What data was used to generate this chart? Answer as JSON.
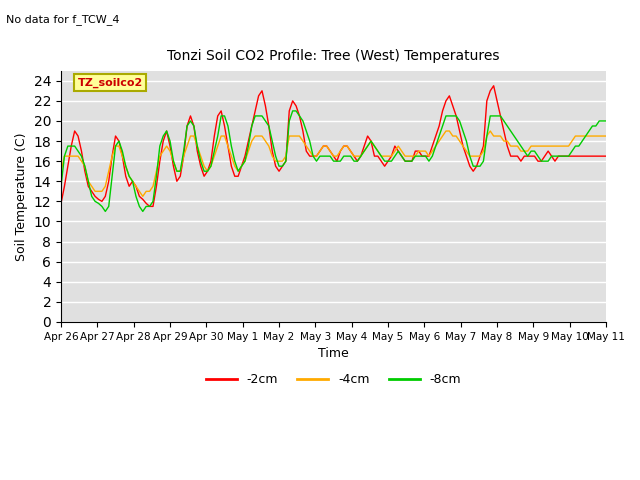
{
  "title": "Tonzi Soil CO2 Profile: Tree (West) Temperatures",
  "subtitle": "No data for f_TCW_4",
  "xlabel": "Time",
  "ylabel": "Soil Temperature (C)",
  "ylim": [
    0,
    25
  ],
  "yticks": [
    0,
    2,
    4,
    6,
    8,
    10,
    12,
    14,
    16,
    18,
    20,
    22,
    24
  ],
  "xtick_labels": [
    "Apr 26",
    "Apr 27",
    "Apr 28",
    "Apr 29",
    "Apr 30",
    "May 1",
    "May 2",
    "May 3",
    "May 4",
    "May 5",
    "May 6",
    "May 7",
    "May 8",
    "May 9",
    "May 10",
    "May 11"
  ],
  "legend_label": "TZ_soilco2",
  "series_labels": [
    "-2cm",
    "-4cm",
    "-8cm"
  ],
  "series_colors": [
    "#ff0000",
    "#ffaa00",
    "#00cc00"
  ],
  "background_color": "#e0e0e0",
  "legend_box_color": "#ffff99",
  "legend_box_edge": "#aaaa00",
  "y_2cm": [
    11.8,
    13.5,
    15.5,
    17.5,
    19.0,
    18.5,
    17.0,
    15.0,
    13.5,
    13.0,
    12.5,
    12.2,
    12.0,
    12.5,
    14.0,
    16.5,
    18.5,
    18.0,
    16.5,
    14.5,
    13.5,
    14.0,
    13.5,
    12.5,
    12.2,
    11.8,
    11.5,
    11.5,
    13.5,
    16.0,
    18.0,
    19.0,
    17.5,
    15.5,
    14.0,
    14.5,
    16.5,
    19.5,
    20.5,
    19.5,
    17.0,
    15.5,
    14.5,
    15.0,
    16.0,
    18.5,
    20.5,
    21.0,
    19.5,
    17.5,
    15.5,
    14.5,
    14.5,
    15.5,
    16.5,
    18.0,
    19.5,
    21.0,
    22.5,
    23.0,
    21.5,
    19.5,
    17.0,
    15.5,
    15.0,
    15.5,
    16.0,
    21.0,
    22.0,
    21.5,
    20.5,
    19.0,
    17.0,
    16.5,
    16.5,
    16.5,
    17.0,
    17.5,
    17.5,
    17.0,
    16.5,
    16.0,
    17.0,
    17.5,
    17.5,
    17.0,
    16.5,
    16.0,
    16.5,
    17.5,
    18.5,
    18.0,
    16.5,
    16.5,
    16.0,
    15.5,
    16.0,
    16.5,
    17.5,
    17.0,
    16.5,
    16.0,
    16.0,
    16.0,
    17.0,
    17.0,
    16.5,
    16.5,
    16.5,
    17.5,
    18.5,
    19.5,
    21.0,
    22.0,
    22.5,
    21.5,
    20.5,
    19.0,
    17.5,
    16.5,
    15.5,
    15.0,
    15.5,
    16.5,
    17.5,
    22.0,
    23.0,
    23.5,
    22.0,
    20.5,
    19.0,
    17.5,
    16.5,
    16.5,
    16.5,
    16.0,
    16.5,
    16.5,
    16.5,
    16.5,
    16.0,
    16.0,
    16.5,
    17.0,
    16.5,
    16.0,
    16.5,
    16.5,
    16.5,
    16.5,
    16.5,
    16.5,
    16.5,
    16.5,
    16.5,
    16.5,
    16.5,
    16.5,
    16.5,
    16.5,
    16.5
  ],
  "y_4cm": [
    15.0,
    16.5,
    16.5,
    16.5,
    16.5,
    16.5,
    16.0,
    15.5,
    14.0,
    13.5,
    13.0,
    13.0,
    13.0,
    13.5,
    15.0,
    16.5,
    17.5,
    17.5,
    16.5,
    15.5,
    14.5,
    14.0,
    13.5,
    13.0,
    12.5,
    13.0,
    13.0,
    13.5,
    15.0,
    16.5,
    17.0,
    17.5,
    17.0,
    16.0,
    15.0,
    15.0,
    16.5,
    17.5,
    18.5,
    18.5,
    17.5,
    16.5,
    15.5,
    15.0,
    15.5,
    16.5,
    17.5,
    18.5,
    18.5,
    17.5,
    16.5,
    15.5,
    15.0,
    15.5,
    16.0,
    17.0,
    18.0,
    18.5,
    18.5,
    18.5,
    18.0,
    17.5,
    16.5,
    16.0,
    16.0,
    16.0,
    16.5,
    18.5,
    18.5,
    18.5,
    18.5,
    18.0,
    17.5,
    17.0,
    16.5,
    16.5,
    17.0,
    17.5,
    17.5,
    17.0,
    16.5,
    16.5,
    17.0,
    17.5,
    17.5,
    17.0,
    16.5,
    16.5,
    16.5,
    17.0,
    17.5,
    18.0,
    17.5,
    17.0,
    16.5,
    16.5,
    16.5,
    16.5,
    17.0,
    17.5,
    17.0,
    16.5,
    16.5,
    16.5,
    16.5,
    17.0,
    17.0,
    17.0,
    16.5,
    17.0,
    17.5,
    18.0,
    18.5,
    19.0,
    19.0,
    18.5,
    18.5,
    18.0,
    17.5,
    17.0,
    16.5,
    16.5,
    16.5,
    16.5,
    17.0,
    18.5,
    19.0,
    18.5,
    18.5,
    18.5,
    18.0,
    18.0,
    17.5,
    17.5,
    17.5,
    17.0,
    17.0,
    17.0,
    17.5,
    17.5,
    17.5,
    17.5,
    17.5,
    17.5,
    17.5,
    17.5,
    17.5,
    17.5,
    17.5,
    17.5,
    18.0,
    18.5,
    18.5,
    18.5,
    18.5,
    18.5,
    18.5,
    18.5,
    18.5,
    18.5,
    18.5
  ],
  "y_8cm": [
    13.5,
    16.5,
    17.5,
    17.5,
    17.5,
    17.0,
    16.5,
    15.5,
    14.0,
    12.5,
    12.0,
    11.8,
    11.5,
    11.0,
    11.5,
    14.5,
    17.5,
    18.0,
    17.0,
    15.5,
    14.5,
    14.0,
    12.5,
    11.5,
    11.0,
    11.5,
    11.5,
    12.0,
    14.5,
    17.5,
    18.5,
    19.0,
    18.0,
    16.0,
    15.0,
    15.0,
    17.0,
    19.5,
    20.0,
    19.5,
    17.5,
    16.0,
    15.0,
    15.0,
    15.5,
    17.0,
    18.5,
    20.5,
    20.5,
    19.5,
    17.5,
    16.0,
    15.0,
    15.5,
    16.0,
    17.5,
    19.5,
    20.5,
    20.5,
    20.5,
    20.0,
    19.5,
    18.0,
    16.5,
    15.5,
    15.5,
    16.0,
    20.0,
    21.0,
    21.0,
    20.5,
    20.0,
    19.0,
    18.0,
    16.5,
    16.0,
    16.5,
    16.5,
    16.5,
    16.5,
    16.0,
    16.0,
    16.0,
    16.5,
    16.5,
    16.5,
    16.0,
    16.0,
    16.5,
    17.0,
    17.5,
    18.0,
    17.5,
    17.0,
    16.5,
    16.0,
    16.0,
    16.0,
    16.5,
    17.0,
    16.5,
    16.0,
    16.0,
    16.0,
    16.5,
    16.5,
    16.5,
    16.5,
    16.0,
    16.5,
    17.5,
    18.5,
    19.5,
    20.5,
    20.5,
    20.5,
    20.5,
    20.0,
    19.0,
    18.0,
    16.5,
    15.5,
    15.5,
    15.5,
    16.0,
    18.5,
    20.5,
    20.5,
    20.5,
    20.5,
    20.0,
    19.5,
    19.0,
    18.5,
    18.0,
    17.5,
    17.0,
    16.5,
    17.0,
    17.0,
    16.5,
    16.0,
    16.0,
    16.0,
    16.5,
    16.5,
    16.5,
    16.5,
    16.5,
    16.5,
    17.0,
    17.5,
    17.5,
    18.0,
    18.5,
    19.0,
    19.5,
    19.5,
    20.0,
    20.0,
    20.0
  ]
}
